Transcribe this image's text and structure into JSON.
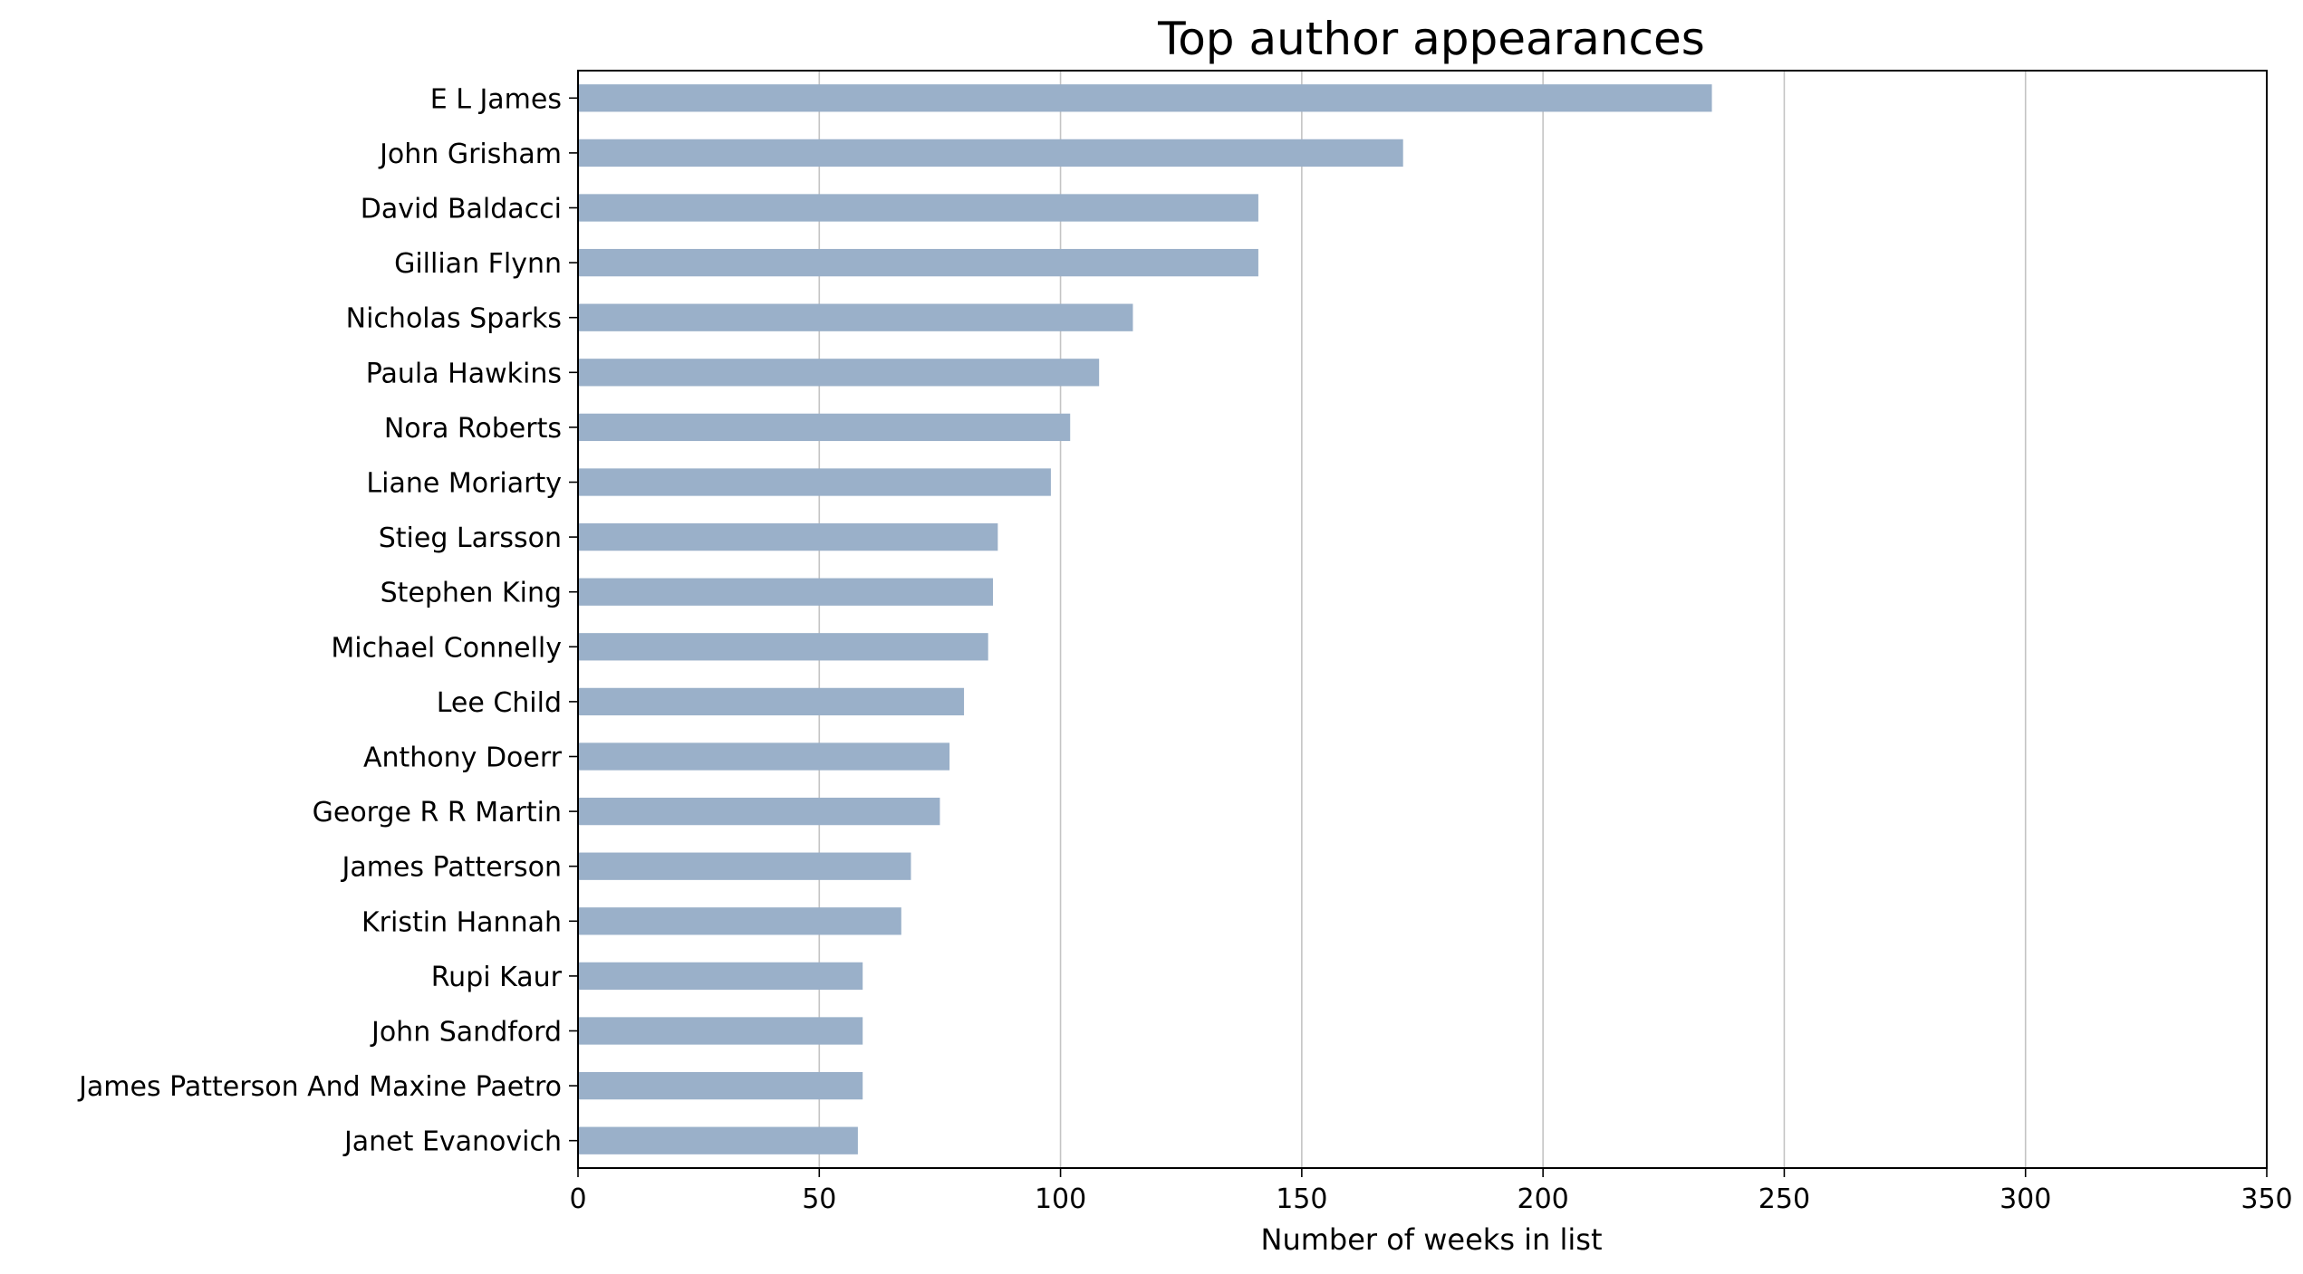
{
  "chart_data": {
    "type": "bar",
    "orientation": "horizontal",
    "title": "Top author appearances",
    "xlabel": "Number of weeks in list",
    "ylabel": "",
    "xlim": [
      0,
      350
    ],
    "x_ticks": [
      0,
      50,
      100,
      150,
      200,
      250,
      300,
      350
    ],
    "grid": "x",
    "bar_color": "#9ab0c9",
    "categories": [
      "E L James",
      "John Grisham",
      "David Baldacci",
      "Gillian Flynn",
      "Nicholas Sparks",
      "Paula Hawkins",
      "Nora Roberts",
      "Liane Moriarty",
      "Stieg Larsson",
      "Stephen King",
      "Michael Connelly",
      "Lee Child",
      "Anthony Doerr",
      "George R R Martin",
      "James Patterson",
      "Kristin Hannah",
      "Rupi Kaur",
      "John Sandford",
      "James Patterson And Maxine Paetro",
      "Janet Evanovich"
    ],
    "values": [
      235,
      171,
      141,
      141,
      115,
      108,
      102,
      98,
      87,
      86,
      85,
      80,
      77,
      75,
      69,
      67,
      59,
      59,
      59,
      58
    ]
  }
}
